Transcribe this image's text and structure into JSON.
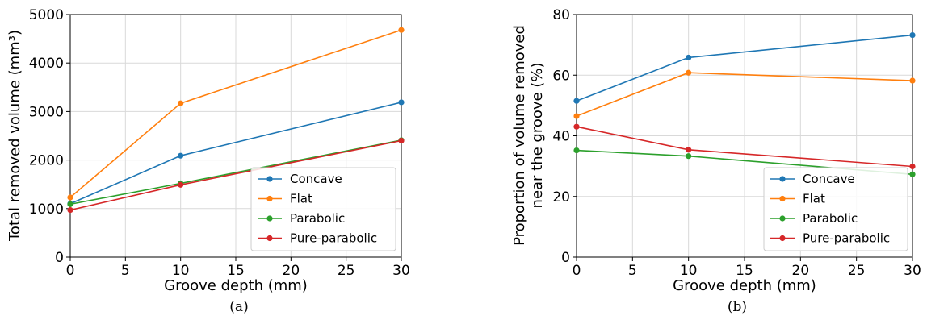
{
  "chart_data": [
    {
      "type": "line",
      "xlabel": "Groove depth (mm)",
      "ylabel": "Total removed volume (mm³)",
      "caption": "(a)",
      "x": [
        0,
        10,
        30
      ],
      "xlim": [
        0,
        30
      ],
      "ylim": [
        0,
        5000
      ],
      "xticks": [
        0,
        5,
        10,
        15,
        20,
        25,
        30
      ],
      "yticks": [
        0,
        1000,
        2000,
        3000,
        4000,
        5000
      ],
      "grid": true,
      "legend": "lower-right",
      "series": [
        {
          "name": "Concave",
          "color": "#1f77b4",
          "values": [
            1100,
            2090,
            3190
          ]
        },
        {
          "name": "Flat",
          "color": "#ff7f0e",
          "values": [
            1230,
            3170,
            4680
          ]
        },
        {
          "name": "Parabolic",
          "color": "#2ca02c",
          "values": [
            1090,
            1520,
            2410
          ]
        },
        {
          "name": "Pure-parabolic",
          "color": "#d62728",
          "values": [
            970,
            1490,
            2400
          ]
        }
      ]
    },
    {
      "type": "line",
      "xlabel": "Groove depth (mm)",
      "ylabel": "Proportion of volume removed near the groove (%)",
      "ylabel_lines": [
        "Proportion of volume removed",
        "near the groove (%)"
      ],
      "caption": "(b)",
      "x": [
        0,
        10,
        30
      ],
      "xlim": [
        0,
        30
      ],
      "ylim": [
        0,
        80
      ],
      "xticks": [
        0,
        5,
        10,
        15,
        20,
        25,
        30
      ],
      "yticks": [
        0,
        20,
        40,
        60,
        80
      ],
      "grid": true,
      "legend": "lower-right",
      "series": [
        {
          "name": "Concave",
          "color": "#1f77b4",
          "values": [
            51.5,
            65.8,
            73.2
          ]
        },
        {
          "name": "Flat",
          "color": "#ff7f0e",
          "values": [
            46.5,
            60.8,
            58.2
          ]
        },
        {
          "name": "Parabolic",
          "color": "#2ca02c",
          "values": [
            35.2,
            33.3,
            27.3
          ]
        },
        {
          "name": "Pure-parabolic",
          "color": "#d62728",
          "values": [
            43.0,
            35.4,
            29.9
          ]
        }
      ]
    }
  ]
}
